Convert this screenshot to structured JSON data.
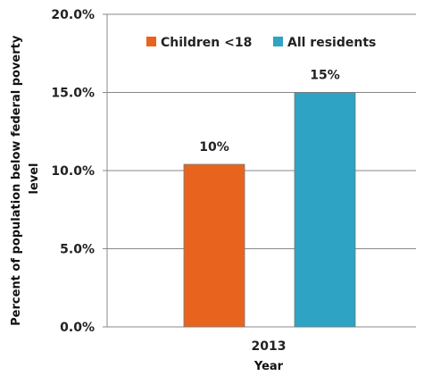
{
  "chart_data": {
    "type": "bar",
    "categories": [
      "2013"
    ],
    "series": [
      {
        "name": "Children <18",
        "values": [
          10.4
        ],
        "data_label": "10%",
        "color": "#E8641E"
      },
      {
        "name": "All residents",
        "values": [
          15.0
        ],
        "data_label": "15%",
        "color": "#2EA3C3"
      }
    ],
    "xlabel": "Year",
    "ylabel": "Percent of population below federal poverty level",
    "ylim": [
      0,
      20
    ],
    "yticks": [
      "0.0%",
      "5.0%",
      "10.0%",
      "15.0%",
      "20.0%"
    ],
    "ytick_values": [
      0,
      5,
      10,
      15,
      20
    ],
    "grid": true,
    "legend_position": "top-center"
  }
}
